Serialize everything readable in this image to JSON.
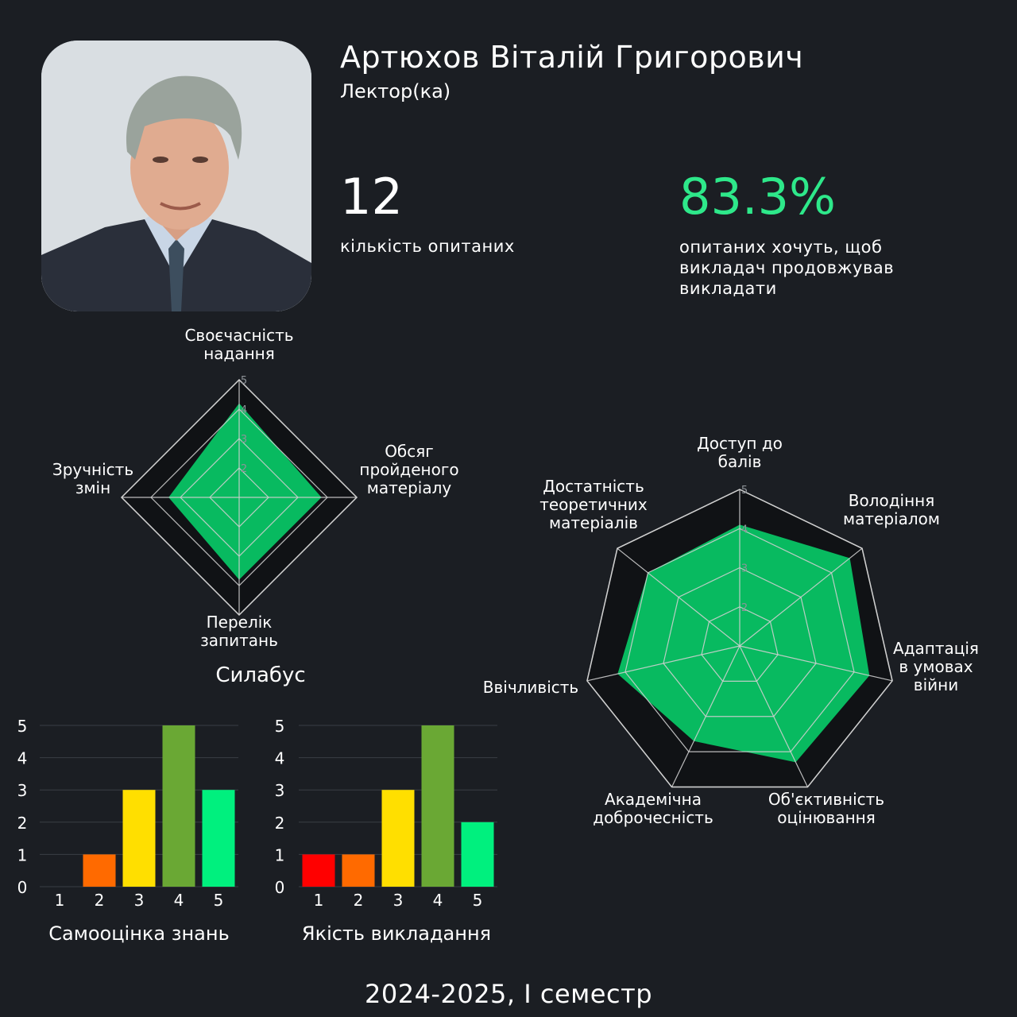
{
  "profile": {
    "name": "Артюхов Віталій Григорович",
    "role": "Лектор(ка)",
    "photo_icon": "lecturer-portrait"
  },
  "stats": {
    "respondents_count": "12",
    "respondents_label": "кількість опитаних",
    "continue_percent": "83.3%",
    "continue_label": "опитаних хочуть, щоб викладач продовжував викладати"
  },
  "colors": {
    "background": "#1b1e23",
    "radar_fill": "#08ba60",
    "accent": "#2ee88a",
    "grid": "#cfcfcf"
  },
  "chart_data": [
    {
      "type": "radar",
      "title": "Силабус",
      "axes": [
        "Своєчасність надання",
        "Обсяг пройденого матеріалу",
        "Перелік запитань",
        "Зручність змін"
      ],
      "values": [
        4.2,
        3.8,
        3.8,
        3.4
      ],
      "range": [
        1,
        5
      ],
      "tick_labels": [
        "2",
        "3",
        "4",
        "5"
      ]
    },
    {
      "type": "radar",
      "title": "",
      "axes": [
        "Доступ до балів",
        "Володіння матеріалом",
        "Адаптація в умовах війни",
        "Об'єктивність оцінювання",
        "Академічна доброчесність",
        "Ввічливість",
        "Достатність теоретичних матеріалів"
      ],
      "values": [
        4.1,
        4.6,
        4.4,
        4.3,
        3.7,
        4.2,
        4.0
      ],
      "range": [
        1,
        5
      ],
      "tick_labels": [
        "2",
        "3",
        "4",
        "5"
      ]
    },
    {
      "type": "bar",
      "title": "Самооцінка знань",
      "categories": [
        "1",
        "2",
        "3",
        "4",
        "5"
      ],
      "values": [
        0,
        1,
        3,
        5,
        3
      ],
      "ylim": [
        0,
        5
      ],
      "yticks": [
        "0",
        "1",
        "2",
        "3",
        "4",
        "5"
      ],
      "colors": [
        "#ff0000",
        "#ff6a00",
        "#ffdf00",
        "#6aa834",
        "#00f07e"
      ]
    },
    {
      "type": "bar",
      "title": "Якість викладання",
      "categories": [
        "1",
        "2",
        "3",
        "4",
        "5"
      ],
      "values": [
        1,
        1,
        3,
        5,
        2
      ],
      "ylim": [
        0,
        5
      ],
      "yticks": [
        "0",
        "1",
        "2",
        "3",
        "4",
        "5"
      ],
      "colors": [
        "#ff0000",
        "#ff6a00",
        "#ffdf00",
        "#6aa834",
        "#00f07e"
      ]
    }
  ],
  "footer": {
    "semester": "2024-2025, І семестр"
  }
}
